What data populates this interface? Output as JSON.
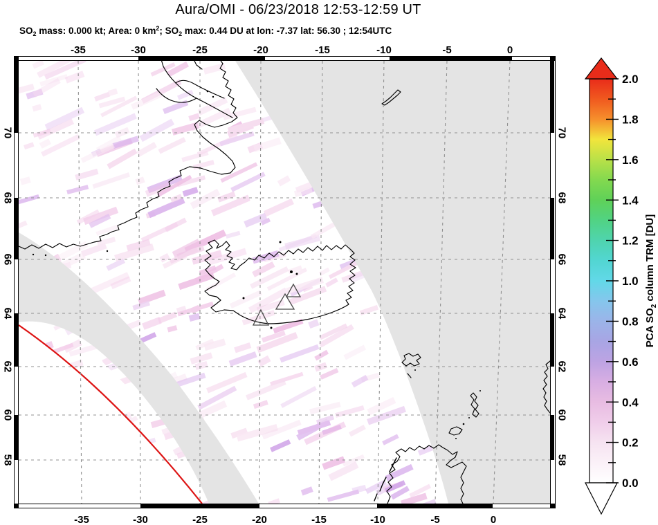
{
  "title": "Aura/OMI - 06/23/2018 12:53-12:59 UT",
  "subtitle": {
    "p1": "SO",
    "s1": "2",
    "p2": " mass: 0.000 kt; Area: 0 km",
    "sup1": "2",
    "p3": "; SO",
    "s2": "2",
    "p4": " max: 0.44 DU at lon: -7.37 lat: 56.30 ; 12:54UTC"
  },
  "axes": {
    "lon_labels": [
      "-35",
      "-30",
      "-25",
      "-20",
      "-15",
      "-10",
      "-5",
      "0"
    ],
    "lat_labels": [
      "70",
      "68",
      "66",
      "64",
      "62",
      "60",
      "58"
    ]
  },
  "colorbar": {
    "title_p1": "PCA SO",
    "title_sub": "2",
    "title_p2": " column TRM [DU]",
    "tick_labels": [
      "2.0",
      "1.8",
      "1.6",
      "1.4",
      "1.2",
      "1.0",
      "0.8",
      "0.6",
      "0.4",
      "0.2",
      "0.0"
    ],
    "stops": [
      {
        "v": 2.0,
        "c": "#e92c1a"
      },
      {
        "v": 1.9,
        "c": "#f0591f"
      },
      {
        "v": 1.8,
        "c": "#f68f2c"
      },
      {
        "v": 1.7,
        "c": "#f2e53c"
      },
      {
        "v": 1.6,
        "c": "#b9e148"
      },
      {
        "v": 1.5,
        "c": "#83d94f"
      },
      {
        "v": 1.4,
        "c": "#5fd158"
      },
      {
        "v": 1.3,
        "c": "#51d383"
      },
      {
        "v": 1.2,
        "c": "#4fd4ae"
      },
      {
        "v": 1.1,
        "c": "#52d6d2"
      },
      {
        "v": 1.0,
        "c": "#62d8e8"
      },
      {
        "v": 0.9,
        "c": "#85c6ec"
      },
      {
        "v": 0.8,
        "c": "#9bb4e9"
      },
      {
        "v": 0.7,
        "c": "#a8a5e4"
      },
      {
        "v": 0.6,
        "c": "#bda3e3"
      },
      {
        "v": 0.5,
        "c": "#d8aee3"
      },
      {
        "v": 0.4,
        "c": "#e8bce2"
      },
      {
        "v": 0.3,
        "c": "#f0cdea"
      },
      {
        "v": 0.2,
        "c": "#f6e3f1"
      },
      {
        "v": 0.1,
        "c": "#fbf1f8"
      },
      {
        "v": 0.0,
        "c": "#ffffff"
      }
    ]
  },
  "colors": {
    "swath_gap_grey": "#e4e4e4",
    "orbit_edge_red": "#dd1414",
    "gridline_grey": "#909090",
    "coastline": "#000000",
    "streak_palette": [
      "#f9e8f4",
      "#f6dcef",
      "#f3cfea",
      "#efc2e5",
      "#f6dcef",
      "#f9e8f4",
      "#ecd3f2",
      "#e2c0ef",
      "#f3cfea",
      "#d9b2ec"
    ]
  }
}
